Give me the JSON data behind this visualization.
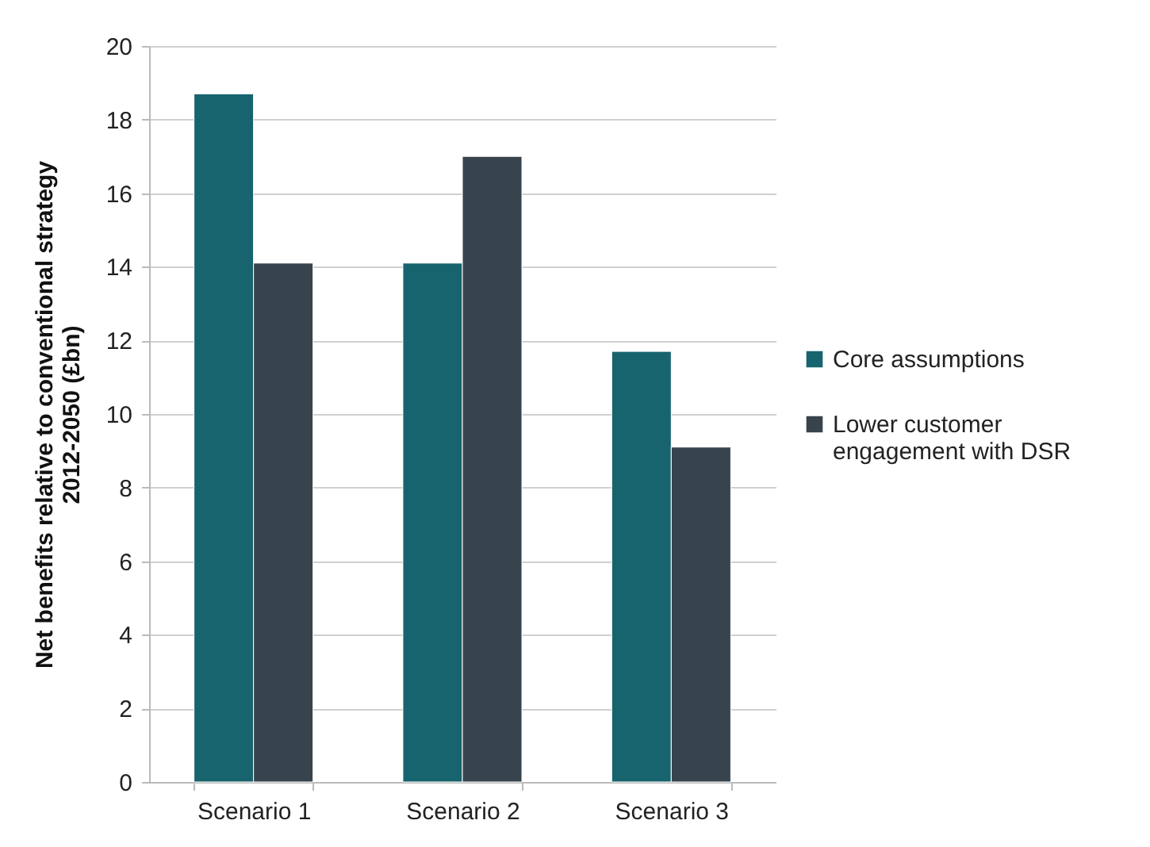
{
  "chart_data": {
    "type": "bar",
    "ylabel": "Net benefits relative to conventional strategy 2012-2050 (£bn)",
    "categories": [
      "Scenario 1",
      "Scenario 2",
      "Scenario 3"
    ],
    "series": [
      {
        "name": "Core assumptions",
        "color": "#17646e",
        "values": [
          18.7,
          14.1,
          11.7
        ]
      },
      {
        "name": "Lower customer engagement with DSR",
        "color": "#37444d",
        "values": [
          14.1,
          17.0,
          9.1
        ]
      }
    ],
    "ylim": [
      0,
      20
    ],
    "yticks": [
      0,
      2,
      4,
      6,
      8,
      10,
      12,
      14,
      16,
      18,
      20
    ],
    "grid": "y",
    "legend": "right"
  }
}
